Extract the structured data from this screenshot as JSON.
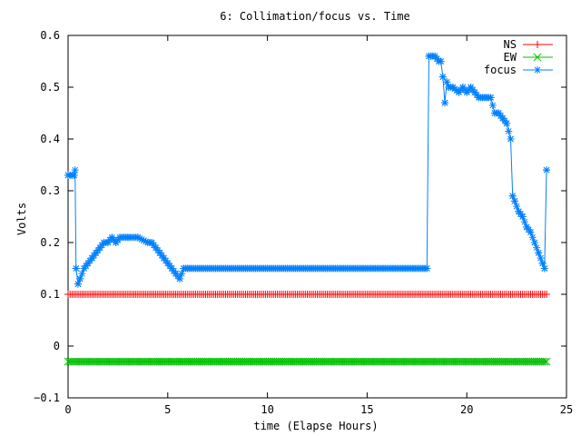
{
  "chart_data": {
    "type": "line",
    "title": "6: Collimation/focus vs. Time",
    "xlabel": "time (Elapse Hours)",
    "ylabel": "Volts",
    "xlim": [
      0,
      25
    ],
    "ylim": [
      -0.1,
      0.6
    ],
    "xticks": [
      0,
      5,
      10,
      15,
      20,
      25
    ],
    "yticks": [
      -0.1,
      0,
      0.1,
      0.2,
      0.3,
      0.4,
      0.5,
      0.6
    ],
    "grid": false,
    "legend": {
      "position": "top-right"
    },
    "series": [
      {
        "name": "NS",
        "color": "#ff0000",
        "marker": "plus",
        "x": [
          0.0,
          24.0
        ],
        "y": [
          0.1,
          0.1
        ],
        "sample_interval": 0.1
      },
      {
        "name": "EW",
        "color": "#00c000",
        "marker": "cross",
        "x": [
          0.0,
          24.0
        ],
        "y": [
          -0.03,
          -0.03
        ],
        "sample_interval": 0.1
      },
      {
        "name": "focus",
        "color": "#0080ff",
        "marker": "star",
        "sample_interval": 0.1,
        "x": [
          0.0,
          0.3,
          0.35,
          0.4,
          0.5,
          0.6,
          0.8,
          1.0,
          1.2,
          1.4,
          1.6,
          1.8,
          2.0,
          2.2,
          2.4,
          2.6,
          2.8,
          3.0,
          3.5,
          4.0,
          4.2,
          4.4,
          4.6,
          4.8,
          5.0,
          5.2,
          5.4,
          5.6,
          5.8,
          6.0,
          18.0,
          18.1,
          18.2,
          18.4,
          18.6,
          18.7,
          18.8,
          18.9,
          19.0,
          19.1,
          19.3,
          19.6,
          19.8,
          20.0,
          20.2,
          20.4,
          20.6,
          20.8,
          21.0,
          21.2,
          21.4,
          21.6,
          21.8,
          22.0,
          22.2,
          22.3,
          22.4,
          22.6,
          22.8,
          23.0,
          23.2,
          23.4,
          23.6,
          23.8,
          23.9,
          24.0
        ],
        "y": [
          0.33,
          0.33,
          0.34,
          0.15,
          0.12,
          0.13,
          0.15,
          0.16,
          0.17,
          0.18,
          0.19,
          0.2,
          0.2,
          0.21,
          0.2,
          0.21,
          0.21,
          0.21,
          0.21,
          0.2,
          0.2,
          0.19,
          0.18,
          0.17,
          0.16,
          0.15,
          0.14,
          0.13,
          0.15,
          0.15,
          0.15,
          0.56,
          0.56,
          0.56,
          0.55,
          0.55,
          0.52,
          0.47,
          0.51,
          0.5,
          0.5,
          0.49,
          0.5,
          0.49,
          0.5,
          0.49,
          0.48,
          0.48,
          0.48,
          0.48,
          0.45,
          0.45,
          0.44,
          0.43,
          0.4,
          0.29,
          0.28,
          0.26,
          0.25,
          0.23,
          0.22,
          0.2,
          0.18,
          0.16,
          0.15,
          0.34
        ]
      }
    ]
  }
}
